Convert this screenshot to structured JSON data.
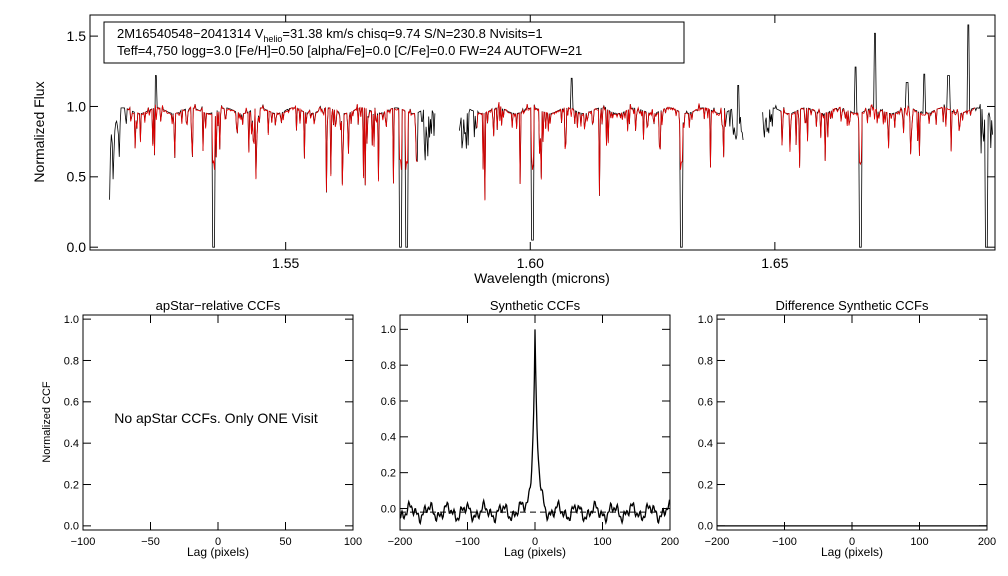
{
  "chart_data": [
    {
      "type": "line",
      "panel": "spectrum",
      "info_line1_pre": "2M16540548−2041314  V",
      "info_line1_sub": "helio",
      "info_line1_post": "=31.38 km/s  chisq=9.74  S/N=230.8  Nvisits=1",
      "info_line2": "Teff=4,750 logg=3.0 [Fe/H]=0.50 [alpha/Fe]=0.0 [C/Fe]=0.0 FW=24 AUTOFW=21",
      "xlabel": "Wavelength (microns)",
      "ylabel": "Normalized Flux",
      "xlim": [
        1.51,
        1.695
      ],
      "ylim": [
        -0.02,
        1.65
      ],
      "xticks": [
        "1.55",
        "1.60",
        "1.65"
      ],
      "yticks": [
        "0.0",
        "0.5",
        "1.0",
        "1.5"
      ],
      "chips": [
        [
          1.514,
          1.5805
        ],
        [
          1.5855,
          1.6435
        ],
        [
          1.6475,
          1.6945
        ]
      ],
      "deep_lines_black": [
        [
          1.5353,
          0.0
        ],
        [
          1.5735,
          0.0
        ],
        [
          1.5748,
          0.0
        ],
        [
          1.6005,
          0.05
        ],
        [
          1.6309,
          0.0
        ],
        [
          1.6675,
          0.0
        ],
        [
          1.6932,
          0.0
        ]
      ],
      "spikes_black": [
        [
          1.5235,
          1.22
        ],
        [
          1.6085,
          1.2
        ],
        [
          1.6425,
          1.15
        ],
        [
          1.6665,
          1.28
        ],
        [
          1.6705,
          1.52
        ],
        [
          1.677,
          1.17
        ],
        [
          1.6805,
          1.23
        ],
        [
          1.6855,
          1.22
        ],
        [
          1.6895,
          1.58
        ]
      ],
      "series": [
        {
          "color": "#000000"
        },
        {
          "color": "#e00000"
        }
      ]
    },
    {
      "type": "text",
      "panel": "apstar-ccf",
      "title": "apStar−relative CCFs",
      "xlabel": "Lag (pixels)",
      "ylabel": "Normalized CCF",
      "xlim": [
        -100,
        100
      ],
      "ylim": [
        -0.02,
        1.02
      ],
      "xticks": [
        "−100",
        "−50",
        "0",
        "50",
        "100"
      ],
      "yticks": [
        "0.0",
        "0.2",
        "0.4",
        "0.6",
        "0.8",
        "1.0"
      ],
      "message": "No apStar CCFs.  Only ONE Visit"
    },
    {
      "type": "line",
      "panel": "synthetic-ccf",
      "title": "Synthetic CCFs",
      "xlabel": "Lag (pixels)",
      "xlim": [
        -200,
        200
      ],
      "ylim": [
        -0.12,
        1.08
      ],
      "xticks": [
        "−200",
        "−100",
        "0",
        "100",
        "200"
      ],
      "yticks": [
        "0.0",
        "0.2",
        "0.4",
        "0.6",
        "0.8",
        "1.0"
      ],
      "peak_lag": 0,
      "peak_value": 1.0,
      "dashed_fit_level": -0.02,
      "series": [
        {
          "color": "#000000"
        }
      ]
    },
    {
      "type": "line",
      "panel": "difference-ccf",
      "title": "Difference Synthetic CCFs",
      "xlabel": "Lag (pixels)",
      "xlim": [
        -200,
        200
      ],
      "ylim": [
        -0.02,
        1.02
      ],
      "xticks": [
        "−200",
        "−100",
        "0",
        "100",
        "200"
      ],
      "yticks": [
        "0.0",
        "0.2",
        "0.4",
        "0.6",
        "0.8",
        "1.0"
      ],
      "constant_value": 0.0,
      "series": [
        {
          "color": "#000000"
        }
      ]
    }
  ]
}
